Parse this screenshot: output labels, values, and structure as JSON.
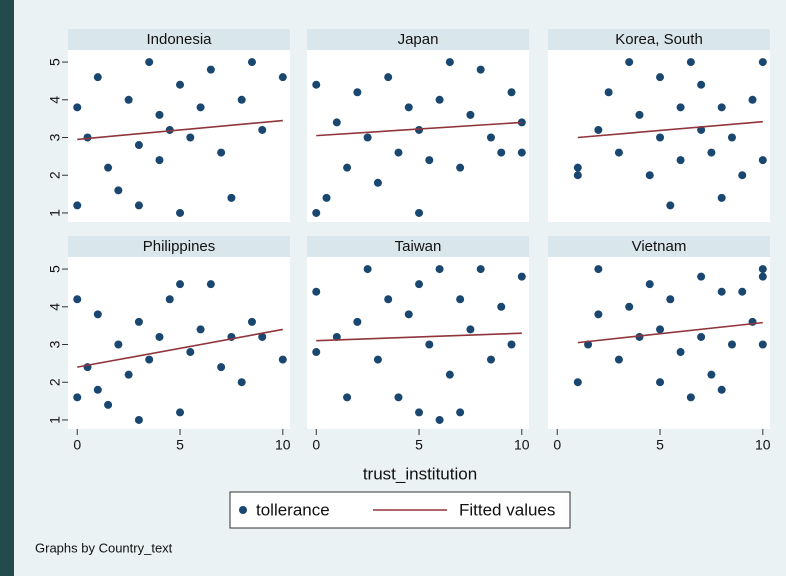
{
  "chart_data": {
    "type": "scatter",
    "x_label": "trust_institution",
    "note": "Graphs by Country_text",
    "xlim": [
      -0.45,
      10.35
    ],
    "ylim": [
      0.76,
      5.32
    ],
    "xticks": [
      0,
      5,
      10
    ],
    "yticks": [
      1,
      2,
      3,
      4,
      5
    ],
    "panels": [
      {
        "title": "Indonesia",
        "series": [
          {
            "name": "tollerance",
            "color": "#1a476f",
            "x": [
              0,
              0,
              0.5,
              1,
              1.5,
              2,
              2.5,
              3,
              3,
              3.5,
              4,
              4,
              4.5,
              5,
              5,
              5.5,
              6,
              6.5,
              7,
              7.5,
              8,
              8.5,
              9,
              10
            ],
            "y": [
              1.2,
              3.8,
              3,
              4.6,
              2.2,
              1.6,
              4,
              1.2,
              2.8,
              5,
              2.4,
              3.6,
              3.2,
              1,
              4.4,
              3,
              3.8,
              4.8,
              2.6,
              1.4,
              4,
              5,
              3.2,
              4.6
            ]
          },
          {
            "name": "Fitted values",
            "color": "#90353b",
            "x": [
              0,
              10
            ],
            "y": [
              2.95,
              3.45
            ]
          }
        ]
      },
      {
        "title": "Japan",
        "series": [
          {
            "name": "tollerance",
            "color": "#1a476f",
            "x": [
              0,
              0,
              0.5,
              1,
              1.5,
              2,
              2.5,
              3,
              3.5,
              4,
              4.5,
              5,
              5,
              5.5,
              6,
              6.5,
              7,
              7.5,
              8,
              8.5,
              9,
              9.5,
              10,
              10
            ],
            "y": [
              1,
              4.4,
              1.4,
              3.4,
              2.2,
              4.2,
              3,
              1.8,
              4.6,
              2.6,
              3.8,
              1,
              3.2,
              2.4,
              4,
              5,
              2.2,
              3.6,
              4.8,
              3,
              2.6,
              4.2,
              3.4,
              2.6
            ]
          },
          {
            "name": "Fitted values",
            "color": "#90353b",
            "x": [
              0,
              10
            ],
            "y": [
              3.05,
              3.4
            ]
          }
        ]
      },
      {
        "title": "Korea, South",
        "series": [
          {
            "name": "tollerance",
            "color": "#1a476f",
            "x": [
              1,
              1,
              2,
              2.5,
              3,
              3.5,
              4,
              4.5,
              5,
              5,
              5.5,
              6,
              6,
              6.5,
              7,
              7,
              7.5,
              8,
              8,
              8.5,
              9,
              9.5,
              10,
              10
            ],
            "y": [
              2,
              2.2,
              3.2,
              4.2,
              2.6,
              5,
              3.6,
              2,
              4.6,
              3,
              1.2,
              3.8,
              2.4,
              5,
              3.2,
              4.4,
              2.6,
              1.4,
              3.8,
              3,
              2,
              4,
              2.4,
              5
            ]
          },
          {
            "name": "Fitted values",
            "color": "#90353b",
            "x": [
              1,
              10
            ],
            "y": [
              3.0,
              3.42
            ]
          }
        ]
      },
      {
        "title": "Philippines",
        "series": [
          {
            "name": "tollerance",
            "color": "#1a476f",
            "x": [
              0,
              0,
              0.5,
              1,
              1,
              1.5,
              2,
              2.5,
              3,
              3,
              3.5,
              4,
              4.5,
              5,
              5,
              5.5,
              6,
              6.5,
              7,
              7.5,
              8,
              8.5,
              9,
              10
            ],
            "y": [
              1.6,
              4.2,
              2.4,
              3.8,
              1.8,
              1.4,
              3,
              2.2,
              1,
              3.6,
              2.6,
              3.2,
              4.2,
              1.2,
              4.6,
              2.8,
              3.4,
              4.6,
              2.4,
              3.2,
              2,
              3.6,
              3.2,
              2.6
            ]
          },
          {
            "name": "Fitted values",
            "color": "#90353b",
            "x": [
              0,
              10
            ],
            "y": [
              2.4,
              3.4
            ]
          }
        ]
      },
      {
        "title": "Taiwan",
        "series": [
          {
            "name": "tollerance",
            "color": "#1a476f",
            "x": [
              0,
              0,
              1,
              1.5,
              2,
              2.5,
              3,
              3.5,
              4,
              4.5,
              5,
              5,
              5.5,
              6,
              6,
              6.5,
              7,
              7,
              7.5,
              8,
              8.5,
              9,
              9.5,
              10
            ],
            "y": [
              4.4,
              2.8,
              3.2,
              1.6,
              3.6,
              5,
              2.6,
              4.2,
              1.6,
              3.8,
              1.2,
              4.6,
              3,
              1,
              5,
              2.2,
              4.2,
              1.2,
              3.4,
              5,
              2.6,
              4,
              3,
              4.8
            ]
          },
          {
            "name": "Fitted values",
            "color": "#90353b",
            "x": [
              0,
              10
            ],
            "y": [
              3.1,
              3.3
            ]
          }
        ]
      },
      {
        "title": "Vietnam",
        "series": [
          {
            "name": "tollerance",
            "color": "#1a476f",
            "x": [
              1,
              1.5,
              2,
              2,
              3,
              3.5,
              4,
              4.5,
              5,
              5,
              5.5,
              6,
              6.5,
              7,
              7,
              7.5,
              8,
              8,
              8.5,
              9,
              9.5,
              10,
              10,
              10
            ],
            "y": [
              2,
              3,
              5,
              3.8,
              2.6,
              4,
              3.2,
              4.6,
              2,
              3.4,
              4.2,
              2.8,
              1.6,
              4.8,
              3.2,
              2.2,
              4.4,
              1.8,
              3,
              4.4,
              3.6,
              5,
              4.8,
              3
            ]
          },
          {
            "name": "Fitted values",
            "color": "#90353b",
            "x": [
              1,
              10
            ],
            "y": [
              3.05,
              3.58
            ]
          }
        ]
      }
    ]
  }
}
